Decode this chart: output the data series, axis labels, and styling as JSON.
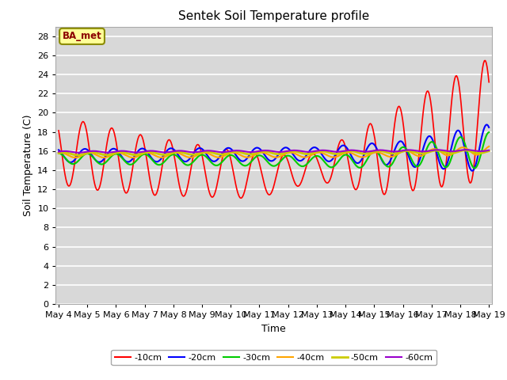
{
  "title": "Sentek Soil Temperature profile",
  "xlabel": "Time",
  "ylabel": "Soil Temperature (C)",
  "ylim": [
    0,
    29
  ],
  "yticks": [
    0,
    2,
    4,
    6,
    8,
    10,
    12,
    14,
    16,
    18,
    20,
    22,
    24,
    26,
    28
  ],
  "background_color": "#d8d8d8",
  "series_colors": {
    "-10cm": "#ff0000",
    "-20cm": "#0000ff",
    "-30cm": "#00cc00",
    "-40cm": "#ffa500",
    "-50cm": "#cccc00",
    "-60cm": "#9900cc"
  },
  "x_labels": [
    "May 4",
    "May 5",
    "May 6",
    "May 7",
    "May 8",
    "May 9",
    "May 10",
    "May 11",
    "May 12",
    "May 13",
    "May 14",
    "May 15",
    "May 16",
    "May 17",
    "May 18",
    "May 19"
  ],
  "n_points": 480,
  "days_total": 15
}
